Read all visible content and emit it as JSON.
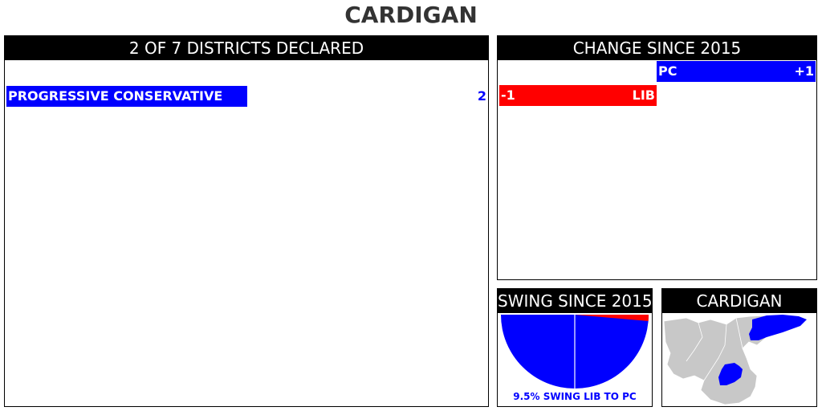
{
  "title": "CARDIGAN",
  "colors": {
    "pc": "#0000ff",
    "lib": "#ff0000",
    "header_bg": "#000000",
    "map_grey": "#c8c8c8"
  },
  "districts_panel": {
    "header": "2 OF 7 DISTRICTS DECLARED",
    "parties": [
      {
        "name": "PROGRESSIVE CONSERVATIVE",
        "seats": "2",
        "color": "#0000ff"
      }
    ]
  },
  "change_panel": {
    "header": "CHANGE SINCE 2015",
    "rows": [
      {
        "party": "PC",
        "change": "+1",
        "color": "#0000ff"
      },
      {
        "party": "LIB",
        "change": "-1",
        "color": "#ff0000"
      }
    ]
  },
  "swing_panel": {
    "header": "SWING SINCE 2015",
    "swing_percent": 9.5,
    "caption": "9.5% SWING LIB TO PC"
  },
  "map_panel": {
    "header": "CARDIGAN"
  }
}
